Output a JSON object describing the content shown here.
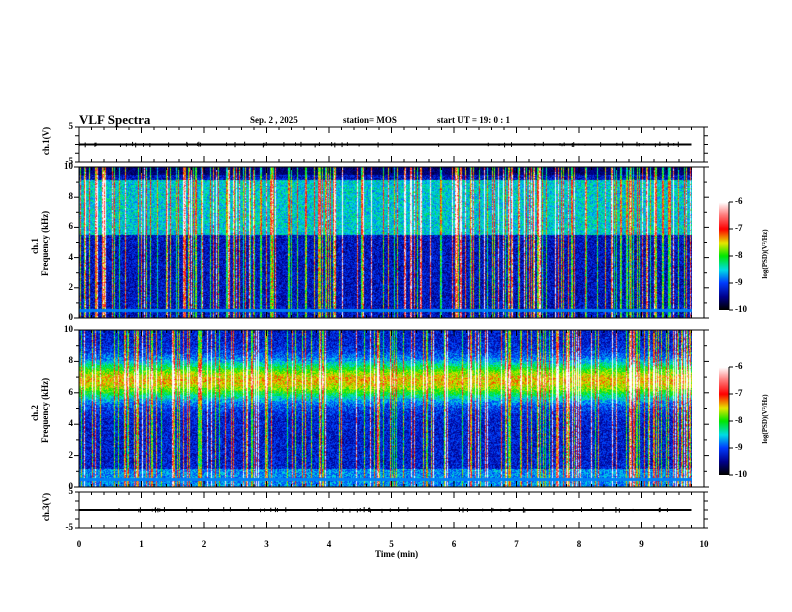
{
  "header": {
    "title": "VLF Spectra",
    "date": "Sep. 2  , 2025",
    "station": "station= MOS",
    "start": "start  UT =    19: 0  : 1"
  },
  "colors": {
    "axis": "#000000",
    "line": "#000000"
  },
  "chart_data": [
    {
      "type": "line",
      "name": "ch1-waveform",
      "ylabel": "ch.1(V)",
      "ylim": [
        -5,
        5
      ],
      "yticks": [
        "5",
        "-5"
      ],
      "xlim": [
        0,
        10
      ],
      "level": 0
    },
    {
      "type": "heatmap",
      "name": "ch1-spectrogram",
      "ylabel": "ch.1\nFrequency (kHz)",
      "ylabel_lines": [
        "ch.1",
        "Frequency (kHz)"
      ],
      "ylim": [
        0,
        10
      ],
      "yticks": [
        "0",
        "2",
        "4",
        "6",
        "8",
        "10"
      ],
      "xlim": [
        0,
        10
      ],
      "data_xmax": 9.8,
      "colorbar": {
        "label": "log(PSD)(V²/Hz)",
        "range": [
          -10,
          -6
        ],
        "ticks": [
          "-6",
          "-7",
          "-8",
          "-9",
          "-10"
        ]
      }
    },
    {
      "type": "heatmap",
      "name": "ch2-spectrogram",
      "ylabel_lines": [
        "ch.2",
        "Frequency (kHz)"
      ],
      "ylim": [
        0,
        10
      ],
      "yticks": [
        "0",
        "2",
        "4",
        "6",
        "8",
        "10"
      ],
      "xlim": [
        0,
        10
      ],
      "data_xmax": 9.8,
      "colorbar": {
        "label": "log(PSD)(V²/Hz)",
        "range": [
          -10,
          -6
        ],
        "ticks": [
          "-6",
          "-7",
          "-8",
          "-9",
          "-10"
        ]
      }
    },
    {
      "type": "line",
      "name": "ch3-waveform",
      "ylabel": "ch.3(V)",
      "ylim": [
        -5,
        5
      ],
      "yticks": [
        "5",
        "-5"
      ],
      "xlim": [
        0,
        10
      ],
      "level": 0,
      "xlabel": "Time  (min)",
      "xticks": [
        "0",
        "1",
        "2",
        "3",
        "4",
        "5",
        "6",
        "7",
        "8",
        "9",
        "10"
      ]
    }
  ]
}
